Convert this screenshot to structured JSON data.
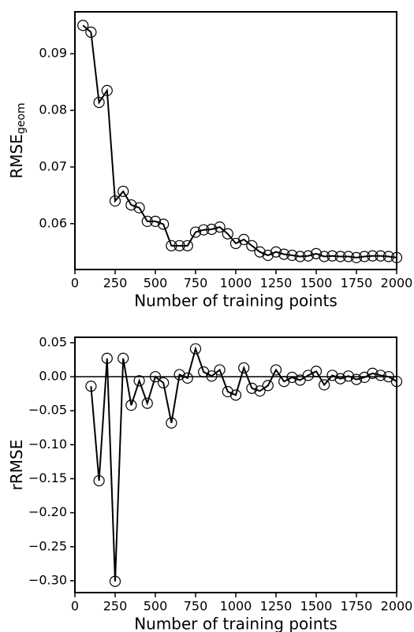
{
  "chart_data": [
    {
      "type": "line",
      "xlabel": "Number of training points",
      "ylabel": "RMSE",
      "ylabel_sub": "geom",
      "x": [
        50,
        100,
        150,
        200,
        250,
        300,
        350,
        400,
        450,
        500,
        550,
        600,
        650,
        700,
        750,
        800,
        850,
        900,
        950,
        1000,
        1050,
        1100,
        1150,
        1200,
        1250,
        1300,
        1350,
        1400,
        1450,
        1500,
        1550,
        1600,
        1650,
        1700,
        1750,
        1800,
        1850,
        1900,
        1950,
        2000
      ],
      "series": [
        {
          "color": "#000000",
          "values": [
            0.095,
            0.0938,
            0.0814,
            0.0835,
            0.064,
            0.0657,
            0.0633,
            0.0628,
            0.0604,
            0.0604,
            0.0599,
            0.0561,
            0.0561,
            0.0561,
            0.0585,
            0.0589,
            0.059,
            0.0594,
            0.0582,
            0.0565,
            0.0572,
            0.0561,
            0.055,
            0.0544,
            0.055,
            0.0546,
            0.0544,
            0.0542,
            0.0543,
            0.0547,
            0.0542,
            0.0543,
            0.0542,
            0.0542,
            0.054,
            0.0542,
            0.0543,
            0.0543,
            0.0542,
            0.054
          ]
        }
      ],
      "xlim": [
        0,
        2000
      ],
      "xticks": [
        0,
        250,
        500,
        750,
        1000,
        1250,
        1500,
        1750,
        2000
      ],
      "ylim": [
        0.0519,
        0.0974
      ],
      "yticks": [
        0.06,
        0.07,
        0.08,
        0.09
      ]
    },
    {
      "type": "line",
      "xlabel": "Number of training points",
      "ylabel": "rRMSE",
      "hline": 0,
      "x": [
        100,
        150,
        200,
        250,
        300,
        350,
        400,
        450,
        500,
        550,
        600,
        650,
        700,
        750,
        800,
        850,
        900,
        950,
        1000,
        1050,
        1100,
        1150,
        1200,
        1250,
        1300,
        1350,
        1400,
        1450,
        1500,
        1550,
        1600,
        1650,
        1700,
        1750,
        1800,
        1850,
        1900,
        1950,
        2000
      ],
      "series": [
        {
          "color": "#000000",
          "values": [
            -0.014,
            -0.153,
            0.027,
            -0.301,
            0.027,
            -0.042,
            -0.006,
            -0.039,
            0.0,
            -0.009,
            -0.068,
            0.003,
            -0.002,
            0.041,
            0.007,
            0.001,
            0.01,
            -0.022,
            -0.027,
            0.013,
            -0.017,
            -0.021,
            -0.013,
            0.01,
            -0.007,
            -0.001,
            -0.005,
            0.002,
            0.008,
            -0.012,
            0.002,
            -0.003,
            0.001,
            -0.004,
            -0.001,
            0.005,
            0.002,
            0.0,
            -0.007
          ]
        }
      ],
      "xlim": [
        0,
        2000
      ],
      "xticks": [
        0,
        250,
        500,
        750,
        1000,
        1250,
        1500,
        1750,
        2000
      ],
      "ylim": [
        -0.3175,
        0.058
      ],
      "yticks": [
        0.05,
        {
          "value": 0,
          "label": "0.00"
        },
        {
          "value": -0.05,
          "label": "−0.05"
        },
        {
          "value": -0.1,
          "label": "−0.10"
        },
        {
          "value": -0.15,
          "label": "−0.15"
        },
        {
          "value": -0.2,
          "label": "−0.20"
        },
        {
          "value": -0.25,
          "label": "−0.25"
        },
        {
          "value": -0.3,
          "label": "−0.30"
        }
      ]
    }
  ]
}
